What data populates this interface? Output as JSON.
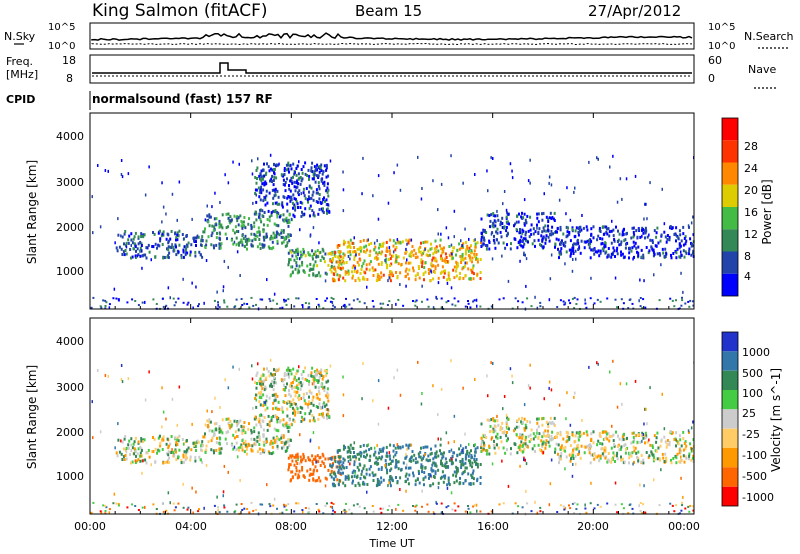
{
  "header": {
    "station": "King Salmon (fitACF)",
    "beam": "Beam 15",
    "date": "27/Apr/2012"
  },
  "noise_panel": {
    "left_label": "N.Sky",
    "right_label": "N.Search",
    "left_ticks": [
      "10^5",
      "10^0"
    ],
    "right_ticks": [
      "10^5",
      "10^0"
    ]
  },
  "freq_panel": {
    "left_label_line1": "Freq.",
    "left_label_line2": "[MHz]",
    "right_label": "Nave",
    "left_ticks": [
      "18",
      "8"
    ],
    "right_ticks": [
      "60",
      "0"
    ]
  },
  "cpid": {
    "label": "CPID",
    "text": "normalsound (fast) 157 RF"
  },
  "x_axis": {
    "label": "Time UT",
    "ticks": [
      "00:00",
      "04:00",
      "08:00",
      "12:00",
      "16:00",
      "20:00",
      "00:00"
    ]
  },
  "power_panel": {
    "ylabel": "Slant Range [km]",
    "yticks": [
      "4000",
      "3000",
      "2000",
      "1000"
    ],
    "colorbar_label": "Power [dB]",
    "colorbar_ticks": [
      "28",
      "24",
      "20",
      "16",
      "12",
      "8",
      "4"
    ],
    "colors": [
      "#0000ff",
      "#2244aa",
      "#338855",
      "#44bb44",
      "#ddcc00",
      "#ff8800",
      "#ff3300",
      "#ff0000"
    ]
  },
  "velocity_panel": {
    "ylabel": "Slant Range [km]",
    "yticks": [
      "4000",
      "3000",
      "2000",
      "1000"
    ],
    "colorbar_label": "Velocity [m s^-1]",
    "colorbar_ticks": [
      "1000",
      "500",
      "100",
      "25",
      "-25",
      "-100",
      "-500",
      "-1000"
    ],
    "colors": [
      "#2233cc",
      "#3377aa",
      "#338855",
      "#44cc44",
      "#cccccc",
      "#ffcc66",
      "#ff9900",
      "#ff6600",
      "#ff0000"
    ]
  },
  "chart_data": {
    "type": "heatmap",
    "x_range_hours": [
      0,
      24
    ],
    "y_range_km": [
      180,
      4500
    ],
    "scatter_blobs": [
      {
        "t0": 1.0,
        "t1": 4.5,
        "r0": 1300,
        "r1": 1900,
        "power": 6,
        "velocity": 0
      },
      {
        "t0": 4.5,
        "t1": 8.0,
        "r0": 1500,
        "r1": 2300,
        "power": 10,
        "velocity": 10
      },
      {
        "t0": 6.5,
        "t1": 9.5,
        "r0": 2200,
        "r1": 3400,
        "power": 5,
        "velocity": 0
      },
      {
        "t0": 7.8,
        "t1": 10.0,
        "r0": 900,
        "r1": 1500,
        "power": 12,
        "velocity": -500
      },
      {
        "t0": 9.5,
        "t1": 15.5,
        "r0": 800,
        "r1": 1700,
        "power": 20,
        "velocity": 300
      },
      {
        "t0": 15.5,
        "t1": 18.5,
        "r0": 1500,
        "r1": 2300,
        "power": 5,
        "velocity": 0
      },
      {
        "t0": 18.5,
        "t1": 24.0,
        "r0": 1300,
        "r1": 2000,
        "power": 4,
        "velocity": 0
      }
    ]
  }
}
